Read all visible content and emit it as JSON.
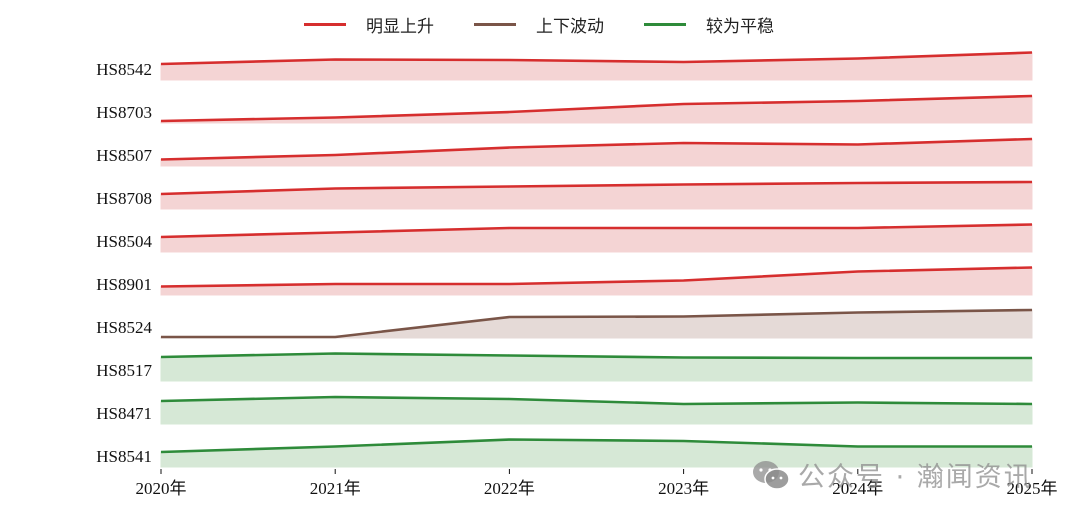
{
  "legend": [
    {
      "label": "明显上升",
      "color": "#d62e2e",
      "fill": "#f4d4d4"
    },
    {
      "label": "上下波动",
      "color": "#7a5548",
      "fill": "#e5dad7"
    },
    {
      "label": "较为平稳",
      "color": "#2e8b3a",
      "fill": "#d6e8d6"
    }
  ],
  "watermark": {
    "text": "公众号 · 瀚闻资讯",
    "icon": "wechat-icon"
  },
  "chart_data": {
    "type": "area",
    "subtype": "ridgeline / small-multiples area",
    "title": "",
    "xlabel": "",
    "ylabel": "",
    "categories": [
      "2020年",
      "2021年",
      "2022年",
      "2023年",
      "2024年",
      "2025年"
    ],
    "grid": false,
    "legend_position": "top-center",
    "value_note": "relative level within each row band (0 = band baseline, approx. scale 0-30, read from pixel height)",
    "series": [
      {
        "name": "HS8542",
        "group": "明显上升",
        "values": [
          16,
          20.5,
          20,
          18,
          21.5,
          27.5
        ]
      },
      {
        "name": "HS8703",
        "group": "明显上升",
        "values": [
          2,
          5.5,
          11,
          19,
          22,
          27
        ]
      },
      {
        "name": "HS8507",
        "group": "明显上升",
        "values": [
          6.5,
          11,
          18.5,
          23,
          21.5,
          27
        ]
      },
      {
        "name": "HS8708",
        "group": "明显上升",
        "values": [
          15,
          20.5,
          22.5,
          24.5,
          26,
          27
        ]
      },
      {
        "name": "HS8504",
        "group": "明显上升",
        "values": [
          15,
          19.5,
          24,
          24,
          24,
          27.5
        ]
      },
      {
        "name": "HS8901",
        "group": "明显上升",
        "values": [
          8.5,
          11,
          11,
          14.5,
          23.5,
          27.5
        ]
      },
      {
        "name": "HS8524",
        "group": "上下波动",
        "values": [
          1,
          1,
          21,
          21.5,
          25.5,
          28
        ]
      },
      {
        "name": "HS8517",
        "group": "较为平稳",
        "values": [
          24,
          27.5,
          25.5,
          23.5,
          23,
          23
        ]
      },
      {
        "name": "HS8471",
        "group": "较为平稳",
        "values": [
          23,
          27,
          25,
          20,
          21.5,
          20
        ]
      },
      {
        "name": "HS8541",
        "group": "较为平稳",
        "values": [
          15,
          20.5,
          27.5,
          26,
          20.5,
          20.5
        ]
      }
    ]
  },
  "layout": {
    "x_left": 161,
    "x_step": 174.2,
    "band_height": 43,
    "baselines": [
      80,
      123,
      166,
      209,
      252,
      295,
      338,
      381,
      424,
      467
    ],
    "groups": {
      "明显上升": {
        "line": "#d62e2e",
        "fill": "#f4d4d4"
      },
      "上下波动": {
        "line": "#7a5548",
        "fill": "#e5dad7"
      },
      "较为平稳": {
        "line": "#2e8b3a",
        "fill": "#d6e8d6"
      }
    }
  }
}
